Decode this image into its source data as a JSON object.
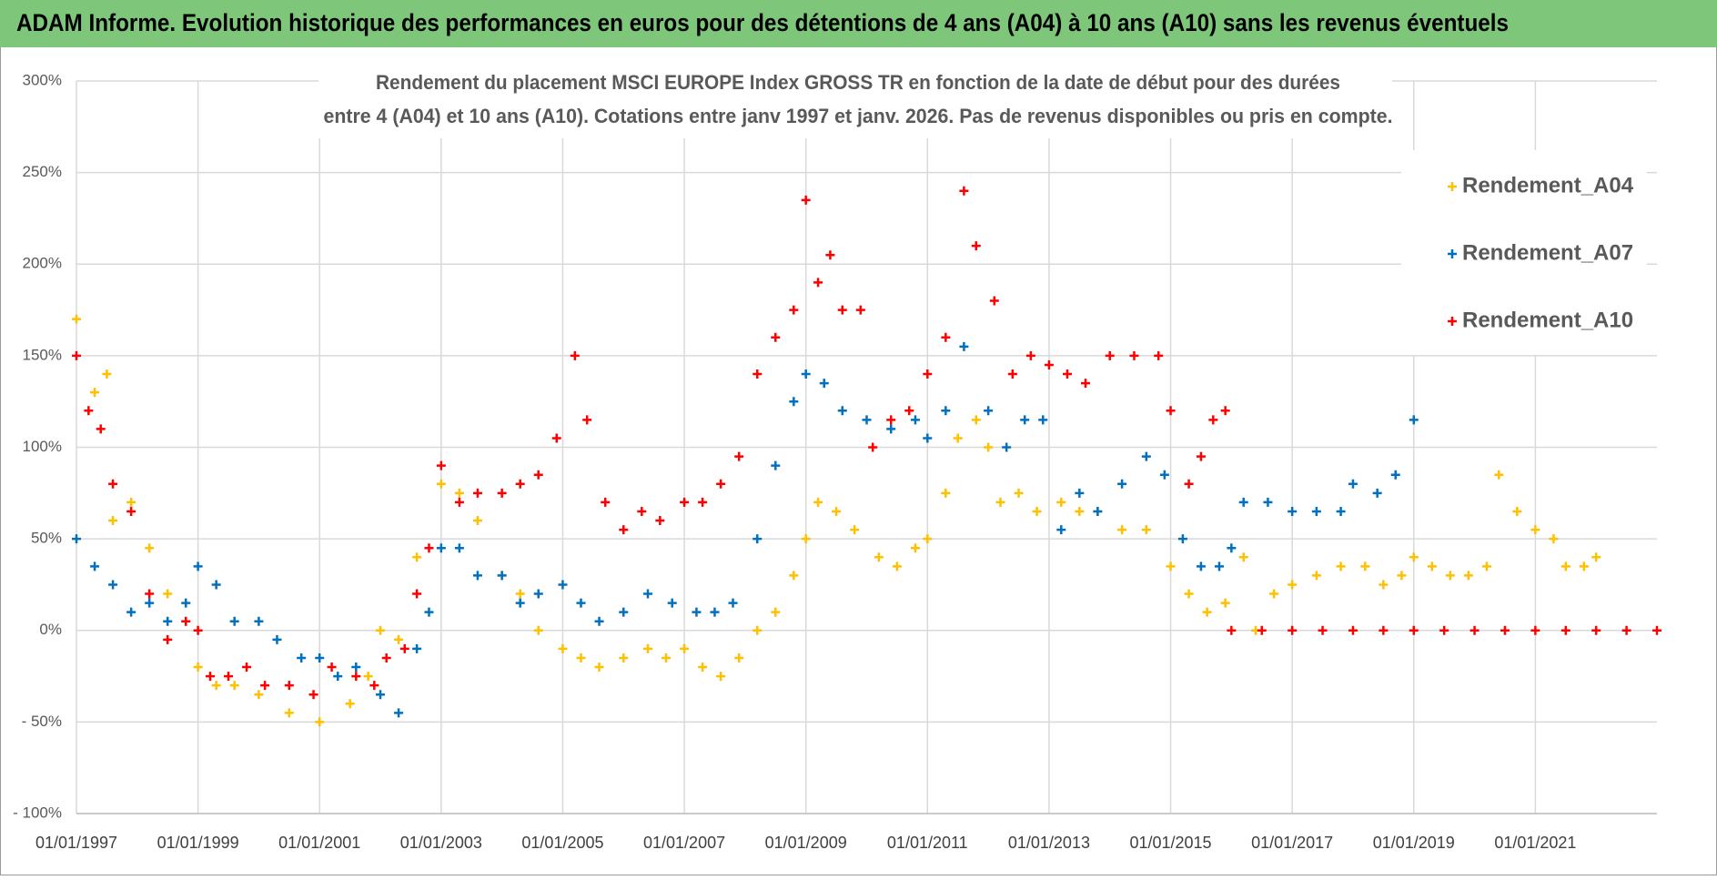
{
  "chart_data": {
    "type": "scatter",
    "title": "ADAM Informe. Evolution historique des performances en euros pour des détentions de 4 ans (A04) à 10 ans (A10) sans les revenus éventuels",
    "subtitle": [
      "Rendement du placement MSCI EUROPE Index GROSS TR en fonction de la date de début pour des durées",
      "entre 4 (A04) et 10 ans (A10). Cotations entre janv 1997 et janv. 2026. Pas de revenus disponibles ou pris en compte."
    ],
    "xlim": [
      1997,
      2023
    ],
    "xticks": [
      {
        "value": 1997,
        "label": "01/01/1997"
      },
      {
        "value": 1999,
        "label": "01/01/1999"
      },
      {
        "value": 2001,
        "label": "01/01/2001"
      },
      {
        "value": 2003,
        "label": "01/01/2003"
      },
      {
        "value": 2005,
        "label": "01/01/2005"
      },
      {
        "value": 2007,
        "label": "01/01/2007"
      },
      {
        "value": 2009,
        "label": "01/01/2009"
      },
      {
        "value": 2011,
        "label": "01/01/2011"
      },
      {
        "value": 2013,
        "label": "01/01/2013"
      },
      {
        "value": 2015,
        "label": "01/01/2015"
      },
      {
        "value": 2017,
        "label": "01/01/2017"
      },
      {
        "value": 2019,
        "label": "01/01/2019"
      },
      {
        "value": 2021,
        "label": "01/01/2021"
      }
    ],
    "ylim": [
      -100,
      300
    ],
    "yticks": [
      {
        "value": -100,
        "label": "- 100%"
      },
      {
        "value": -50,
        "label": "- 50%"
      },
      {
        "value": 0,
        "label": "0%"
      },
      {
        "value": 50,
        "label": "50%"
      },
      {
        "value": 100,
        "label": "100%"
      },
      {
        "value": 150,
        "label": "150%"
      },
      {
        "value": 200,
        "label": "200%"
      },
      {
        "value": 250,
        "label": "250%"
      },
      {
        "value": 300,
        "label": "300%"
      }
    ],
    "grid": true,
    "legend": "top-right",
    "series": [
      {
        "name": "Rendement_A04",
        "color": "#ffc000",
        "x": [
          1997.0,
          1997.3,
          1997.5,
          1997.6,
          1997.9,
          1998.2,
          1998.5,
          1998.8,
          1999.0,
          1999.3,
          1999.6,
          2000.0,
          2000.5,
          2001.0,
          2001.5,
          2001.8,
          2002.0,
          2002.3,
          2002.6,
          2003.0,
          2003.3,
          2003.6,
          2004.0,
          2004.3,
          2004.6,
          2005.0,
          2005.3,
          2005.6,
          2006.0,
          2006.4,
          2006.7,
          2007.0,
          2007.3,
          2007.6,
          2007.9,
          2008.2,
          2008.5,
          2008.8,
          2009.0,
          2009.2,
          2009.5,
          2009.8,
          2010.2,
          2010.5,
          2010.8,
          2011.0,
          2011.3,
          2011.5,
          2011.8,
          2012.0,
          2012.2,
          2012.5,
          2012.8,
          2013.2,
          2013.5,
          2013.8,
          2014.2,
          2014.6,
          2015.0,
          2015.3,
          2015.6,
          2015.9,
          2016.2,
          2016.4,
          2016.7,
          2017.0,
          2017.4,
          2017.8,
          2018.2,
          2018.5,
          2018.8,
          2019.0,
          2019.3,
          2019.6,
          2019.9,
          2020.2,
          2020.4,
          2020.7,
          2021.0,
          2021.3,
          2021.5,
          2021.8,
          2022.0
        ],
        "values": [
          170,
          130,
          140,
          60,
          70,
          45,
          20,
          5,
          -20,
          -30,
          -30,
          -35,
          -45,
          -50,
          -40,
          -25,
          0,
          -5,
          40,
          80,
          75,
          60,
          30,
          20,
          0,
          -10,
          -15,
          -20,
          -15,
          -10,
          -15,
          -10,
          -20,
          -25,
          -15,
          0,
          10,
          30,
          50,
          70,
          65,
          55,
          40,
          35,
          45,
          50,
          75,
          105,
          115,
          100,
          70,
          75,
          65,
          70,
          65,
          65,
          55,
          55,
          35,
          20,
          10,
          15,
          40,
          0,
          20,
          25,
          30,
          35,
          35,
          25,
          30,
          40,
          35,
          30,
          30,
          35,
          85,
          65,
          55,
          50,
          35,
          35,
          40
        ]
      },
      {
        "name": "Rendement_A07",
        "color": "#0070c0",
        "x": [
          1997.0,
          1997.3,
          1997.6,
          1997.9,
          1998.2,
          1998.5,
          1998.8,
          1999.0,
          1999.3,
          1999.6,
          2000.0,
          2000.3,
          2000.7,
          2001.0,
          2001.3,
          2001.6,
          2002.0,
          2002.3,
          2002.6,
          2002.8,
          2003.0,
          2003.3,
          2003.6,
          2004.0,
          2004.3,
          2004.6,
          2005.0,
          2005.3,
          2005.6,
          2006.0,
          2006.4,
          2006.8,
          2007.2,
          2007.5,
          2007.8,
          2008.2,
          2008.5,
          2008.8,
          2009.0,
          2009.3,
          2009.6,
          2010.0,
          2010.4,
          2010.8,
          2011.0,
          2011.3,
          2011.6,
          2012.0,
          2012.3,
          2012.6,
          2012.9,
          2013.2,
          2013.5,
          2013.8,
          2014.2,
          2014.6,
          2014.9,
          2015.2,
          2015.5,
          2015.8,
          2016.0,
          2016.2,
          2016.6,
          2017.0,
          2017.4,
          2017.8,
          2018.0,
          2018.4,
          2018.7,
          2019.0
        ],
        "values": [
          50,
          35,
          25,
          10,
          15,
          5,
          15,
          35,
          25,
          5,
          5,
          -5,
          -15,
          -15,
          -25,
          -20,
          -35,
          -45,
          -10,
          10,
          45,
          45,
          30,
          30,
          15,
          20,
          25,
          15,
          5,
          10,
          20,
          15,
          10,
          10,
          15,
          50,
          90,
          125,
          140,
          135,
          120,
          115,
          110,
          115,
          105,
          120,
          155,
          120,
          100,
          115,
          115,
          55,
          75,
          65,
          80,
          95,
          85,
          50,
          35,
          35,
          45,
          70,
          70,
          65,
          65,
          65,
          80,
          75,
          85,
          115
        ]
      },
      {
        "name": "Rendement_A10",
        "color": "#ff0000",
        "x": [
          1997.0,
          1997.2,
          1997.4,
          1997.6,
          1997.9,
          1998.2,
          1998.5,
          1998.8,
          1999.0,
          1999.2,
          1999.5,
          1999.8,
          2000.1,
          2000.5,
          2000.9,
          2001.2,
          2001.6,
          2001.9,
          2002.1,
          2002.4,
          2002.6,
          2002.8,
          2003.0,
          2003.3,
          2003.6,
          2004.0,
          2004.3,
          2004.6,
          2004.9,
          2005.2,
          2005.4,
          2005.7,
          2006.0,
          2006.3,
          2006.6,
          2007.0,
          2007.3,
          2007.6,
          2007.9,
          2008.2,
          2008.5,
          2008.8,
          2009.0,
          2009.2,
          2009.4,
          2009.6,
          2009.9,
          2010.1,
          2010.4,
          2010.7,
          2011.0,
          2011.3,
          2011.6,
          2011.8,
          2012.1,
          2012.4,
          2012.7,
          2013.0,
          2013.3,
          2013.6,
          2014.0,
          2014.4,
          2014.8,
          2015.0,
          2015.3,
          2015.5,
          2015.7,
          2015.9,
          2016.0,
          2016.5,
          2017.0,
          2017.5,
          2018.0,
          2018.5,
          2019.0,
          2019.5,
          2020.0,
          2020.5,
          2021.0,
          2021.5,
          2022.0,
          2022.5,
          2023.0
        ],
        "values": [
          150,
          120,
          110,
          80,
          65,
          20,
          -5,
          5,
          0,
          -25,
          -25,
          -20,
          -30,
          -30,
          -35,
          -20,
          -25,
          -30,
          -15,
          -10,
          20,
          45,
          90,
          70,
          75,
          75,
          80,
          85,
          105,
          150,
          115,
          70,
          55,
          65,
          60,
          70,
          70,
          80,
          95,
          140,
          160,
          175,
          235,
          190,
          205,
          175,
          175,
          100,
          115,
          120,
          140,
          160,
          240,
          210,
          180,
          140,
          150,
          145,
          140,
          135,
          150,
          150,
          150,
          120,
          80,
          95,
          115,
          120,
          0,
          0,
          0,
          0,
          0,
          0,
          0,
          0,
          0,
          0,
          0,
          0,
          0,
          0,
          0
        ]
      }
    ]
  }
}
